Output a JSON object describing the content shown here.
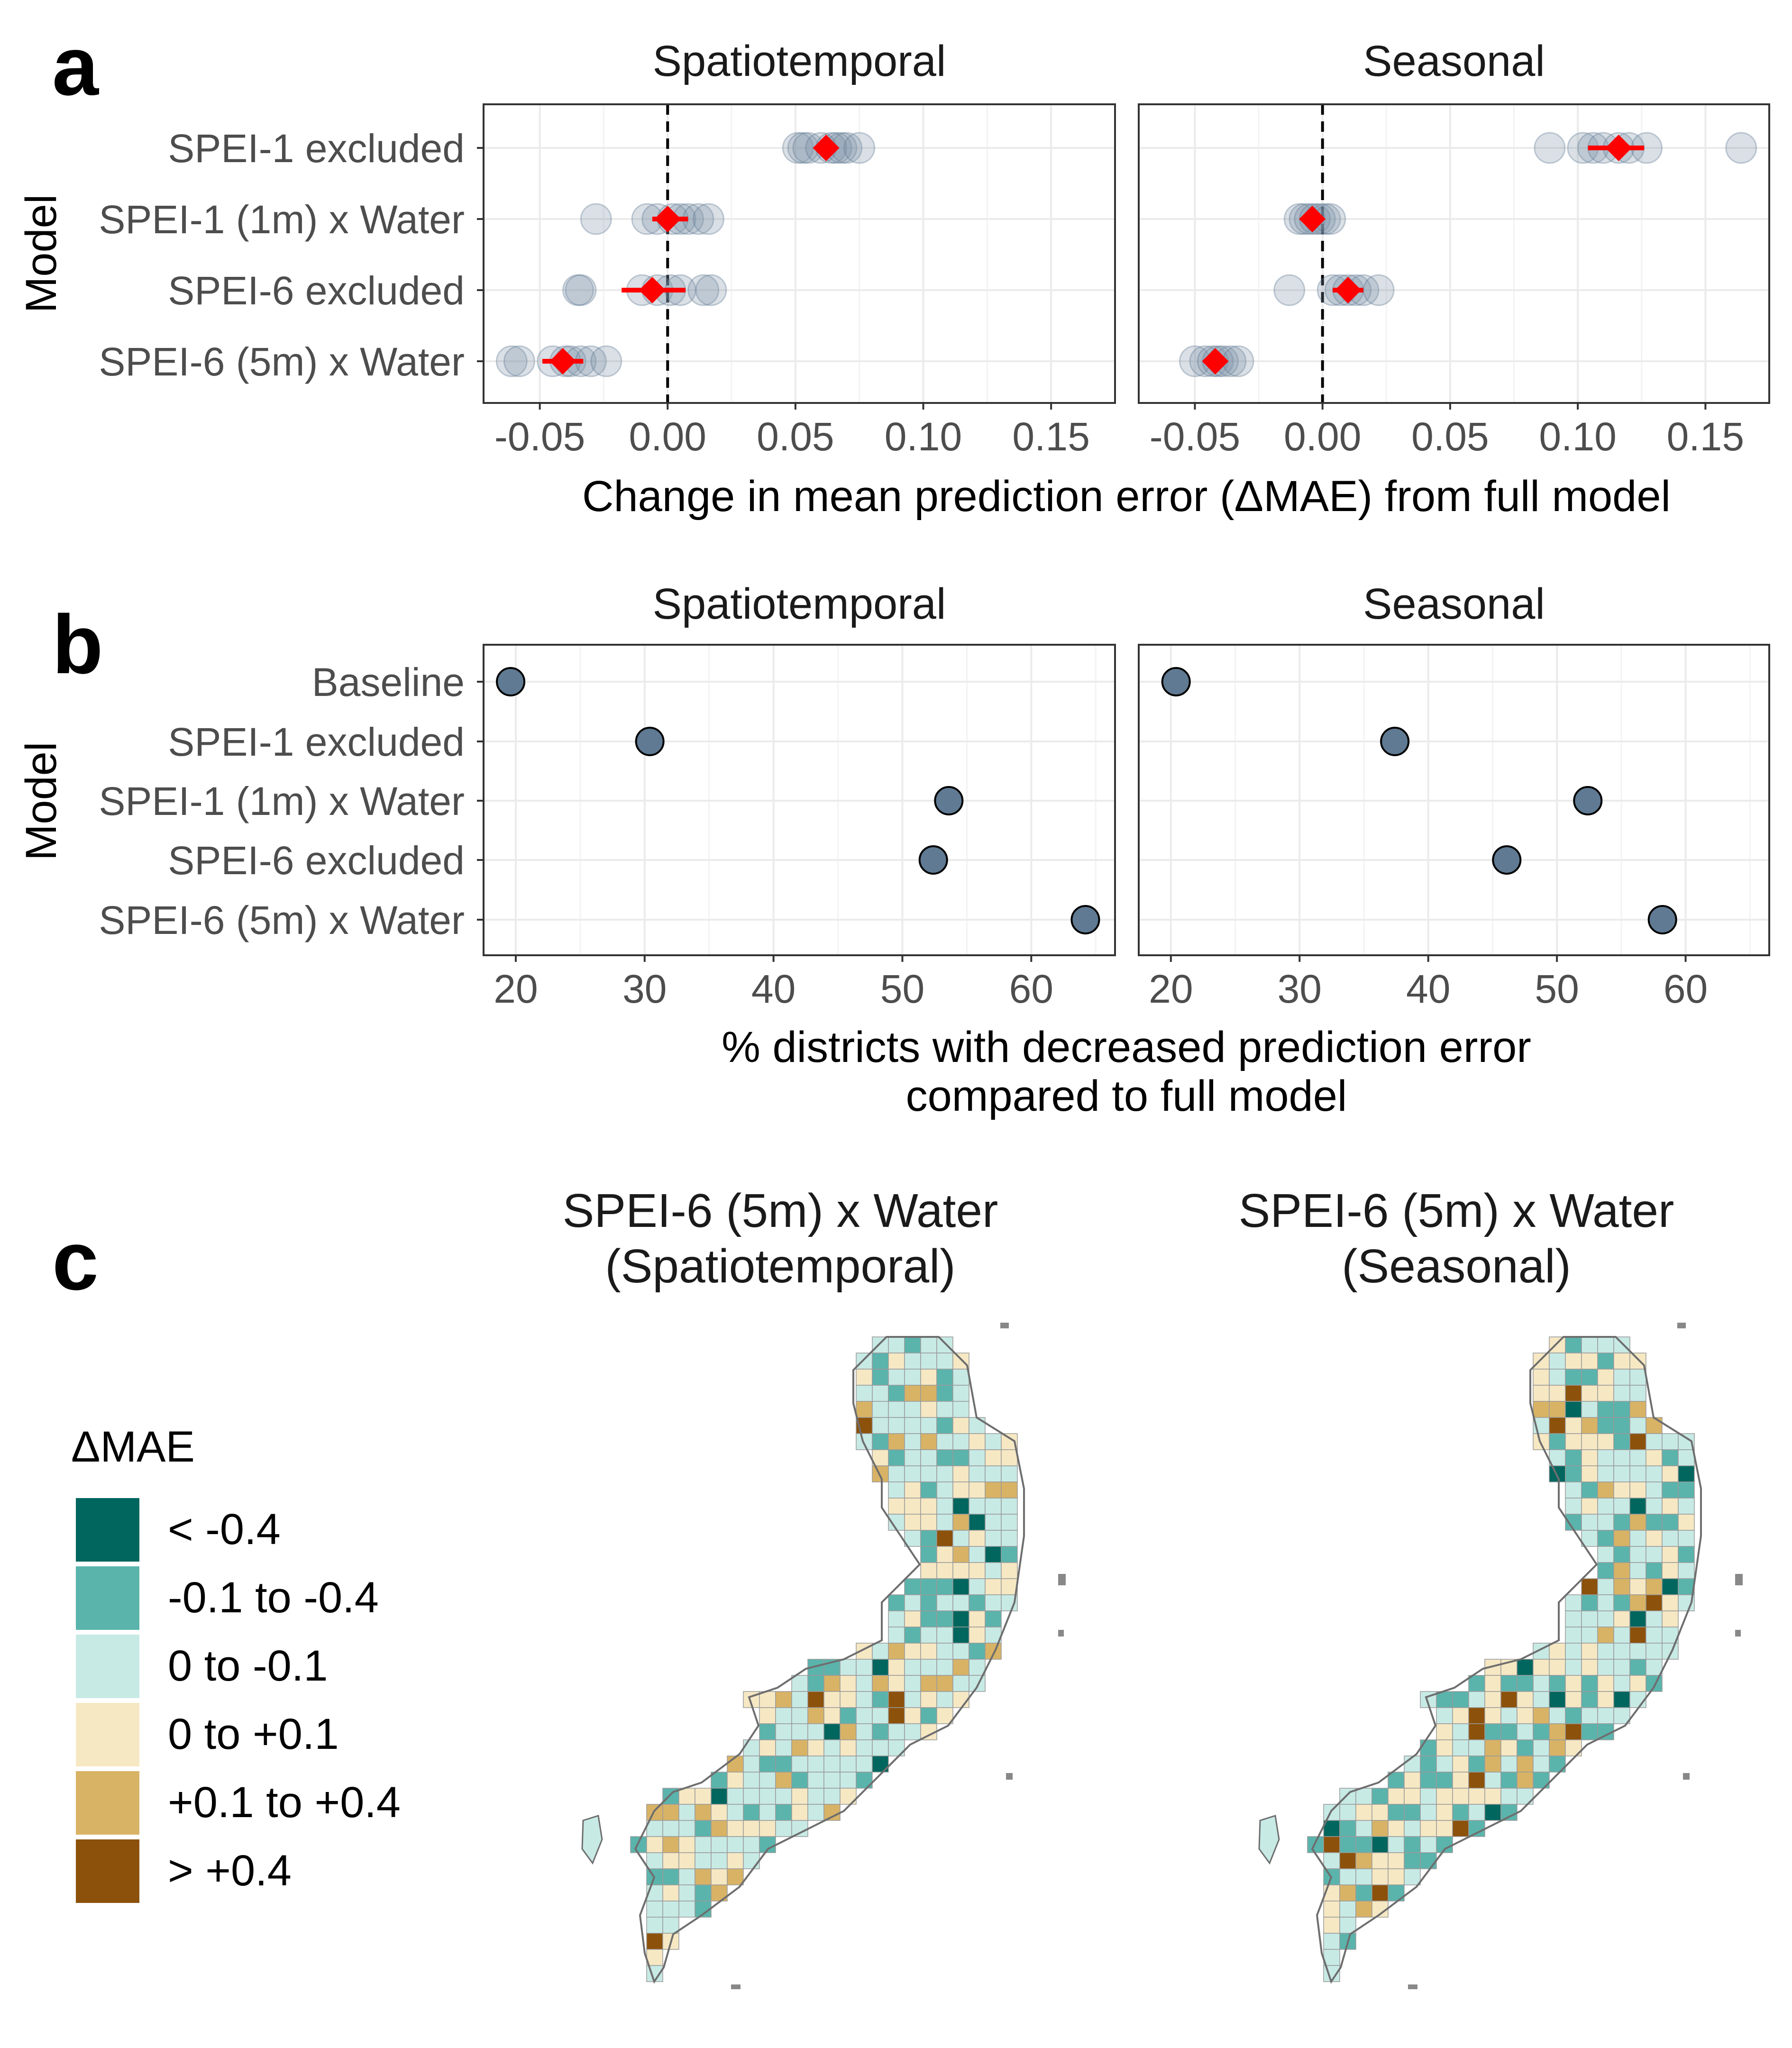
{
  "panel_labels": {
    "a": "a",
    "b": "b",
    "c": "c"
  },
  "colors": {
    "point": "#7a8fa6",
    "point_stroke": "#5d7590",
    "mean": "#ff0000",
    "grid_major": "#ebebeb",
    "grid_minor": "#f3f3f3",
    "frame": "#333333",
    "tick_text": "#4d4d4d"
  },
  "panel_a": {
    "ylabel": "Model",
    "xlabel": "Change in mean prediction error (ΔMAE) from full model",
    "facets": [
      "Spatiotemporal",
      "Seasonal"
    ]
  },
  "panel_b": {
    "ylabel": "Model",
    "xlabel_line1": "% districts with decreased prediction error",
    "xlabel_line2": "compared to full model",
    "facets": [
      "Spatiotemporal",
      "Seasonal"
    ]
  },
  "panel_c": {
    "map_titles": [
      {
        "line1": "SPEI-6 (5m) x Water",
        "line2": "(Spatiotemporal)"
      },
      {
        "line1": "SPEI-6 (5m) x Water",
        "line2": "(Seasonal)"
      }
    ],
    "legend_title": "ΔMAE",
    "legend": [
      {
        "label": "< -0.4",
        "color": "#01665e"
      },
      {
        "label": "-0.1 to -0.4",
        "color": "#5ab4ac"
      },
      {
        "label": "0 to -0.1",
        "color": "#c7eae5"
      },
      {
        "label": "0 to +0.1",
        "color": "#f6e8c3"
      },
      {
        "label": "+0.1 to +0.4",
        "color": "#d8b365"
      },
      {
        "label": "> +0.4",
        "color": "#8c510a"
      }
    ]
  },
  "chart_data": [
    {
      "type": "scatter",
      "panel": "a",
      "facets": [
        "Spatiotemporal",
        "Seasonal"
      ],
      "categories": [
        "SPEI-1 excluded",
        "SPEI-1 (1m) x Water",
        "SPEI-6 excluded",
        "SPEI-6 (5m) x Water"
      ],
      "xlim": [
        -0.072,
        0.175
      ],
      "xticks": [
        -0.05,
        0.0,
        0.05,
        0.1,
        0.15
      ],
      "xtick_labels": [
        "-0.05",
        "0.00",
        "0.05",
        "0.10",
        "0.15"
      ],
      "vline": 0,
      "series": [
        {
          "facet": "Spatiotemporal",
          "points": [
            [
              0.051,
              0.053,
              0.055,
              0.06,
              0.064,
              0.066,
              0.068,
              0.07,
              0.075
            ],
            [
              -0.028,
              -0.008,
              -0.004,
              0.002,
              0.005,
              0.008,
              0.012,
              0.016
            ],
            [
              -0.035,
              -0.034,
              -0.01,
              -0.004,
              0.001,
              0.005,
              0.014,
              0.017
            ],
            [
              -0.061,
              -0.058,
              -0.045,
              -0.04,
              -0.038,
              -0.034,
              -0.03,
              -0.024
            ]
          ],
          "mean": [
            0.062,
            0.0,
            -0.006,
            -0.041
          ],
          "ci_low": [
            0.059,
            -0.006,
            -0.018,
            -0.049
          ],
          "ci_high": [
            0.066,
            0.008,
            0.007,
            -0.033
          ]
        },
        {
          "facet": "Seasonal",
          "points": [
            [
              0.089,
              0.102,
              0.106,
              0.11,
              0.116,
              0.12,
              0.127,
              0.164
            ],
            [
              -0.009,
              -0.007,
              -0.005,
              -0.003,
              -0.001,
              0.001,
              0.003
            ],
            [
              -0.013,
              0.004,
              0.007,
              0.01,
              0.013,
              0.016,
              0.022
            ],
            [
              -0.05,
              -0.046,
              -0.043,
              -0.041,
              -0.039,
              -0.036,
              -0.033
            ]
          ],
          "mean": [
            0.116,
            -0.004,
            0.01,
            -0.042
          ],
          "ci_low": [
            0.104,
            -0.007,
            0.004,
            -0.046
          ],
          "ci_high": [
            0.126,
            -0.001,
            0.016,
            -0.038
          ]
        }
      ]
    },
    {
      "type": "scatter",
      "panel": "b",
      "facets": [
        "Spatiotemporal",
        "Seasonal"
      ],
      "categories": [
        "Baseline",
        "SPEI-1 excluded",
        "SPEI-1 (1m) x Water",
        "SPEI-6 excluded",
        "SPEI-6 (5m) x Water"
      ],
      "xlim": [
        17.5,
        66.5
      ],
      "xticks": [
        20,
        30,
        40,
        50,
        60
      ],
      "xtick_labels": [
        "20",
        "30",
        "40",
        "50",
        "60"
      ],
      "series": [
        {
          "facet": "Spatiotemporal",
          "values": [
            19.6,
            30.4,
            53.6,
            52.4,
            64.2
          ]
        },
        {
          "facet": "Seasonal",
          "values": [
            20.4,
            37.4,
            52.4,
            46.1,
            58.2
          ]
        }
      ]
    }
  ]
}
